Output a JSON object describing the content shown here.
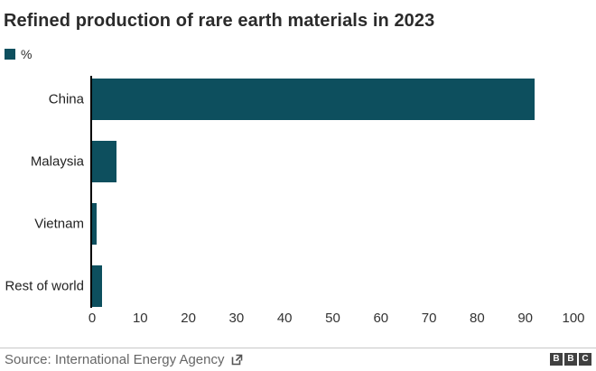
{
  "title": "Refined production of rare earth materials in 2023",
  "legend": {
    "label": "%"
  },
  "chart_data": {
    "type": "bar",
    "orientation": "horizontal",
    "title": "Refined production of rare earth materials in 2023",
    "categories": [
      "China",
      "Malaysia",
      "Vietnam",
      "Rest of world"
    ],
    "values": [
      92,
      5,
      1,
      2
    ],
    "unit": "%",
    "xlabel": "",
    "ylabel": "",
    "xlim": [
      0,
      100
    ],
    "xticks": [
      0,
      10,
      20,
      30,
      40,
      50,
      60,
      70,
      80,
      90,
      100
    ],
    "grid": false,
    "legend_entries": [
      "%"
    ],
    "legend_position": "top-left",
    "bar_color": "#0d4f5e"
  },
  "footer": {
    "source": "Source: International Energy Agency",
    "logo_letters": [
      "B",
      "B",
      "C"
    ]
  },
  "colors": {
    "bar": "#0d4f5e",
    "axis": "#000000",
    "title_text": "#2b2b2b",
    "label_text": "#222222",
    "tick_text": "#333333",
    "source_text": "#666666",
    "divider": "#c8c8c8",
    "logo_block": "#404040",
    "logo_letter": "#ffffff",
    "background": "#ffffff"
  }
}
